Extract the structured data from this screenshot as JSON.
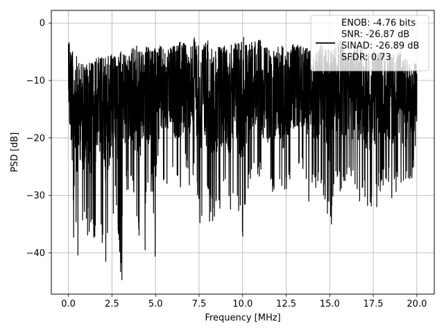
{
  "chart_data": {
    "type": "line",
    "title": "",
    "xlabel": "Frequency [MHz]",
    "ylabel": "PSD [dB]",
    "xlim": [
      -0.98,
      21.0
    ],
    "ylim": [
      -47.2,
      2.2
    ],
    "xticks": [
      0.0,
      2.5,
      5.0,
      7.5,
      10.0,
      12.5,
      15.0,
      17.5,
      20.0
    ],
    "xtick_labels": [
      "0.0",
      "2.5",
      "5.0",
      "7.5",
      "10.0",
      "12.5",
      "15.0",
      "17.5",
      "20.0"
    ],
    "yticks": [
      0,
      -10,
      -20,
      -30,
      -40
    ],
    "ytick_labels": [
      "0",
      "−10",
      "−20",
      "−30",
      "−40"
    ],
    "grid": true,
    "legend_position": "top-right",
    "series": [
      {
        "name": "ENOB: -4.76 bits\nSNR: -26.87 dB\nSINAD: -26.89 dB\nSFDR: 0.73",
        "color": "#000000",
        "x_range": [
          0.0,
          20.0
        ],
        "x": [
          0.0,
          0.05,
          0.1,
          0.2,
          0.35,
          0.5,
          0.6,
          0.8,
          1.0,
          1.2,
          1.5,
          1.7,
          2.0,
          2.2,
          2.5,
          2.7,
          3.0,
          3.1,
          3.4,
          3.7,
          4.0,
          4.3,
          4.5,
          4.8,
          5.0,
          5.3,
          5.6,
          6.0,
          6.2,
          6.5,
          6.8,
          7.0,
          7.3,
          7.6,
          8.0,
          8.3,
          8.6,
          9.0,
          9.3,
          9.6,
          10.0,
          10.3,
          10.6,
          11.0,
          11.3,
          11.6,
          12.0,
          12.3,
          12.6,
          13.0,
          13.3,
          13.6,
          14.0,
          14.3,
          14.6,
          15.0,
          15.3,
          15.6,
          16.0,
          16.3,
          16.6,
          17.0,
          17.3,
          17.6,
          18.0,
          18.3,
          18.6,
          19.0,
          19.3,
          19.6,
          20.0
        ],
        "y_upper": [
          -2,
          -1,
          -3,
          -5,
          -5,
          -6,
          -7,
          -7,
          -7,
          -7,
          -6,
          -6,
          -6,
          -6,
          -5,
          -6,
          -5,
          -5,
          -6,
          -4,
          -4,
          -5,
          -4,
          -5,
          -4,
          -4,
          -5,
          -4,
          -4,
          -3,
          -4,
          -4,
          -2,
          -4,
          -3,
          -5,
          -4,
          -4,
          -4,
          -3,
          -2,
          -4,
          -3,
          -3,
          -4,
          -5,
          -4,
          -4,
          -5,
          -3,
          -4,
          -4,
          -5,
          -5,
          -3,
          -5,
          -4,
          -3,
          -5,
          -5,
          -4,
          -5,
          -5,
          -5,
          -5,
          -6,
          -5,
          -5,
          -6,
          -7,
          -7
        ],
        "y_lower": [
          -14,
          -33,
          -30,
          -37,
          -30,
          -40,
          -32,
          -36,
          -35,
          -37,
          -38,
          -30,
          -41,
          -38,
          -36,
          -30,
          -44,
          -32,
          -29,
          -30,
          -39,
          -31,
          -32,
          -29,
          -40,
          -29,
          -28,
          -28,
          -29,
          -31,
          -25,
          -30,
          -27,
          -37,
          -30,
          -35,
          -33,
          -30,
          -34,
          -32,
          -37,
          -30,
          -26,
          -27,
          -30,
          -31,
          -27,
          -33,
          -29,
          -27,
          -25,
          -27,
          -29,
          -29,
          -31,
          -35,
          -28,
          -30,
          -27,
          -29,
          -31,
          -31,
          -33,
          -30,
          -29,
          -28,
          -31,
          -28,
          -30,
          -29,
          -24
        ],
        "spikes": [
          {
            "x": 0.3,
            "y": -37.3
          },
          {
            "x": 0.55,
            "y": -40.4
          },
          {
            "x": 1.1,
            "y": -36.9
          },
          {
            "x": 2.15,
            "y": -41.5
          },
          {
            "x": 3.07,
            "y": -44.7
          },
          {
            "x": 4.4,
            "y": -39.5
          },
          {
            "x": 4.98,
            "y": -40.6
          },
          {
            "x": 8.1,
            "y": -34.5
          },
          {
            "x": 10.0,
            "y": -37.1
          },
          {
            "x": 15.1,
            "y": -35.0
          },
          {
            "x": 13.8,
            "y": -31.0
          },
          {
            "x": 17.7,
            "y": -32.0
          }
        ]
      }
    ]
  }
}
